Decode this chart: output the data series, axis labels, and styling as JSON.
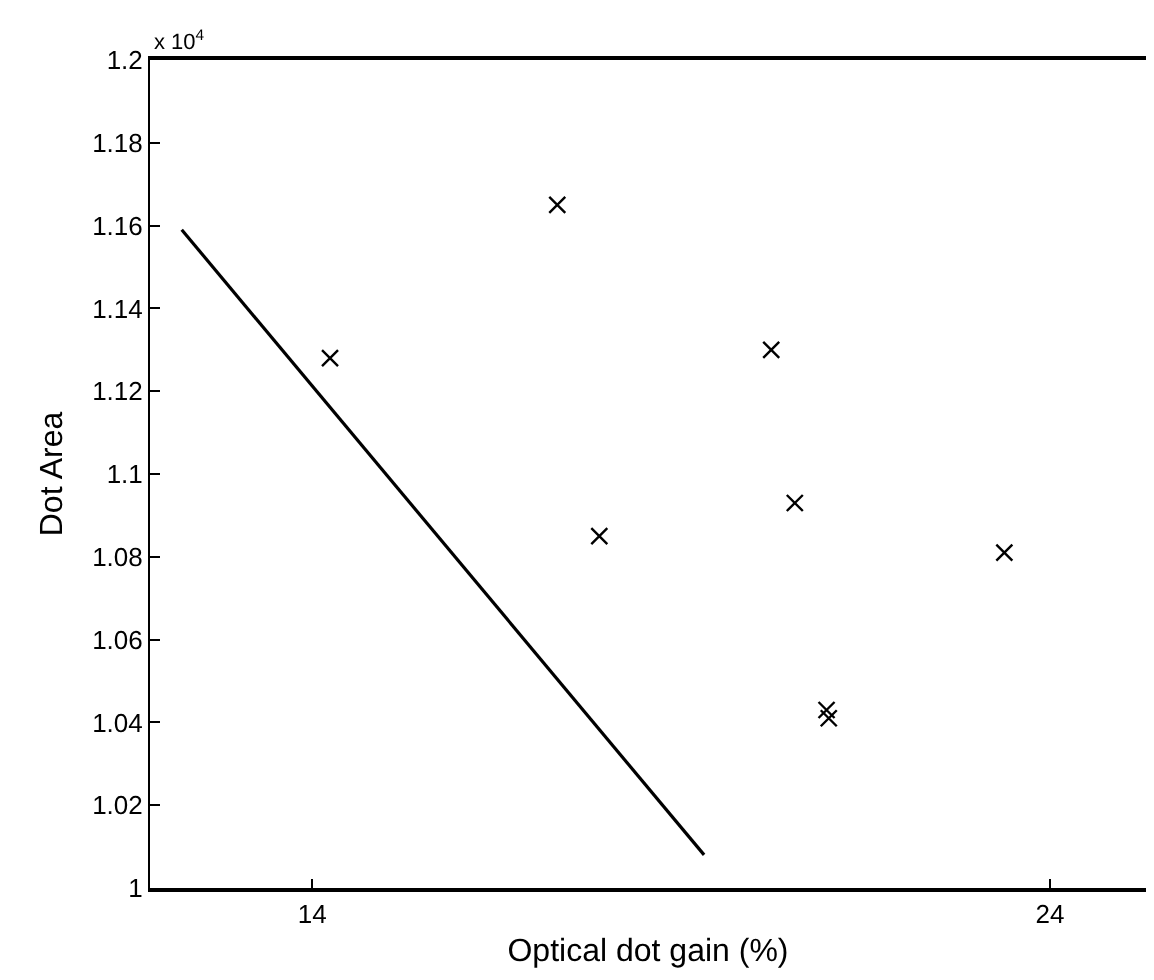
{
  "chart_data": {
    "type": "scatter",
    "xlabel": "Optical dot gain (%)",
    "ylabel": "Dot Area",
    "annotations": [
      "x 10$^{4}$"
    ],
    "xlim": [
      11.8,
      25.3
    ],
    "xticks": [
      14,
      24
    ],
    "ylim": [
      1,
      1.2
    ],
    "yticks": [
      1,
      1.02,
      1.04,
      1.06,
      1.08,
      1.1,
      1.12,
      1.14,
      1.16,
      1.18,
      1.2
    ],
    "series": [
      {
        "color": "#000000",
        "marker": "cross",
        "x": [
          14.24,
          17.32,
          17.89,
          20.22,
          20.54,
          20.97,
          21.0,
          23.38
        ],
        "values": [
          1.128,
          1.165,
          1.085,
          1.13,
          1.093,
          1.043,
          1.041,
          1.081
        ]
      },
      {
        "type": "line",
        "color": "#000000",
        "marker": "none",
        "line_style": "solid",
        "x": [
          12.23,
          19.31
        ],
        "values": [
          1.159,
          1.008
        ]
      }
    ]
  }
}
